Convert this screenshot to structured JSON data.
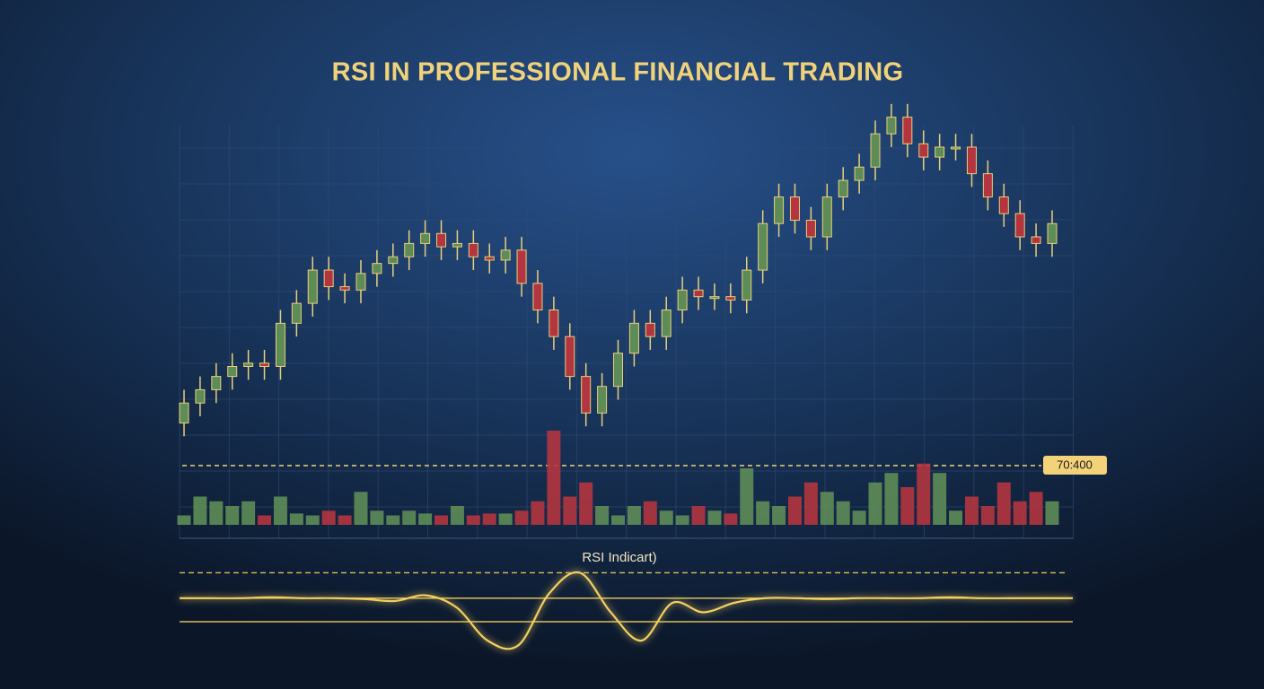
{
  "chart_data": {
    "type": "candlestick",
    "title": "RSI IN PROFESSIONAL FINANCIAL TRADING",
    "open": [
      5,
      11,
      15,
      19,
      22,
      23,
      22,
      35,
      41,
      51,
      46,
      45,
      50,
      53,
      55,
      59,
      62,
      58,
      59,
      55,
      54,
      57,
      47,
      39,
      31,
      19,
      8,
      16,
      26,
      35,
      31,
      39,
      45,
      43,
      43,
      42,
      51,
      65,
      73,
      66,
      61,
      73,
      78,
      82,
      92,
      97,
      89,
      85,
      88,
      88,
      80,
      73,
      68,
      61,
      59
    ],
    "high": [
      15,
      19,
      23,
      26,
      27,
      27,
      39,
      45,
      55,
      55,
      50,
      54,
      57,
      59,
      63,
      66,
      66,
      63,
      63,
      59,
      61,
      61,
      51,
      43,
      35,
      23,
      20,
      30,
      39,
      39,
      43,
      49,
      49,
      47,
      47,
      55,
      69,
      77,
      77,
      70,
      77,
      82,
      86,
      96,
      101,
      101,
      93,
      92,
      92,
      92,
      84,
      77,
      72,
      65,
      69
    ],
    "low": [
      1,
      7,
      11,
      15,
      18,
      18,
      18,
      31,
      37,
      42,
      41,
      41,
      46,
      49,
      51,
      55,
      54,
      54,
      51,
      50,
      50,
      43,
      35,
      27,
      15,
      4,
      4,
      12,
      22,
      27,
      27,
      35,
      39,
      39,
      38,
      38,
      47,
      61,
      62,
      57,
      57,
      69,
      74,
      78,
      88,
      85,
      81,
      81,
      84,
      76,
      69,
      64,
      57,
      55,
      55
    ],
    "close": [
      11,
      15,
      19,
      22,
      23,
      22,
      35,
      41,
      51,
      46,
      45,
      50,
      53,
      55,
      59,
      62,
      58,
      59,
      55,
      54,
      57,
      47,
      39,
      31,
      19,
      8,
      16,
      26,
      35,
      31,
      39,
      45,
      43,
      43,
      42,
      51,
      65,
      73,
      66,
      61,
      73,
      78,
      82,
      92,
      97,
      89,
      85,
      88,
      88,
      80,
      73,
      68,
      61,
      59,
      65
    ],
    "up_color": "#5e8c57",
    "down_color": "#b3353f",
    "ylim": [
      0,
      105
    ],
    "volume": [
      10,
      30,
      25,
      20,
      25,
      10,
      30,
      12,
      10,
      15,
      10,
      35,
      15,
      10,
      15,
      12,
      10,
      20,
      10,
      12,
      12,
      15,
      25,
      100,
      30,
      45,
      20,
      10,
      20,
      25,
      15,
      10,
      20,
      15,
      12,
      60,
      25,
      20,
      30,
      45,
      35,
      25,
      15,
      45,
      55,
      40,
      65,
      55,
      15,
      30,
      20,
      45,
      25,
      35,
      25
    ],
    "volume_lim": [
      0,
      100
    ],
    "annotation": "70:400",
    "rsi_title": "RSI Indicart)",
    "rsi": [
      65,
      65,
      65,
      66,
      65,
      65,
      64,
      62,
      68,
      55,
      20,
      15,
      70,
      92,
      50,
      20,
      60,
      50,
      60,
      65,
      65,
      64,
      65,
      65,
      65,
      66,
      65,
      65,
      65,
      65
    ],
    "rsi_lim": [
      0,
      100
    ],
    "rsi_levels": [
      92,
      65,
      40
    ],
    "rsi_color": "#f3cf5e"
  }
}
